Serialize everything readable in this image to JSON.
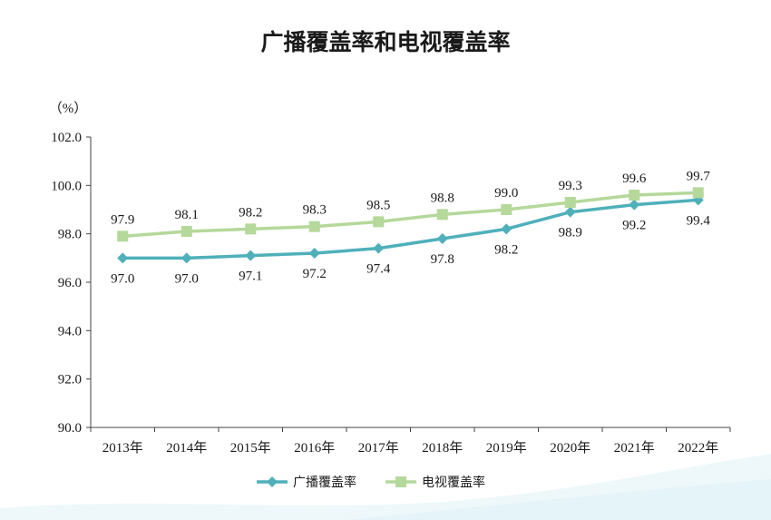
{
  "chart_data": {
    "type": "line",
    "title": "广播覆盖率和电视覆盖率",
    "unit_label": "（%）",
    "categories": [
      "2013年",
      "2014年",
      "2015年",
      "2016年",
      "2017年",
      "2018年",
      "2019年",
      "2020年",
      "2021年",
      "2022年"
    ],
    "ylim": [
      90.0,
      102.0
    ],
    "yticks": [
      "90.0",
      "92.0",
      "94.0",
      "96.0",
      "98.0",
      "100.0",
      "102.0"
    ],
    "grid": false,
    "legend_position": "bottom",
    "series": [
      {
        "name": "广播覆盖率",
        "color": "#4fb0ba",
        "marker": "diamond",
        "label_position": "below",
        "values": [
          97.0,
          97.0,
          97.1,
          97.2,
          97.4,
          97.8,
          98.2,
          98.9,
          99.2,
          99.4
        ],
        "labels": [
          "97.0",
          "97.0",
          "97.1",
          "97.2",
          "97.4",
          "97.8",
          "98.2",
          "98.9",
          "99.2",
          "99.4"
        ]
      },
      {
        "name": "电视覆盖率",
        "color": "#b5d89b",
        "marker": "square",
        "label_position": "above",
        "values": [
          97.9,
          98.1,
          98.2,
          98.3,
          98.5,
          98.8,
          99.0,
          99.3,
          99.6,
          99.7
        ],
        "labels": [
          "97.9",
          "98.1",
          "98.2",
          "98.3",
          "98.5",
          "98.8",
          "99.0",
          "99.3",
          "99.6",
          "99.7"
        ]
      }
    ]
  },
  "decor": {
    "wave_color": "#e3f3f8"
  }
}
